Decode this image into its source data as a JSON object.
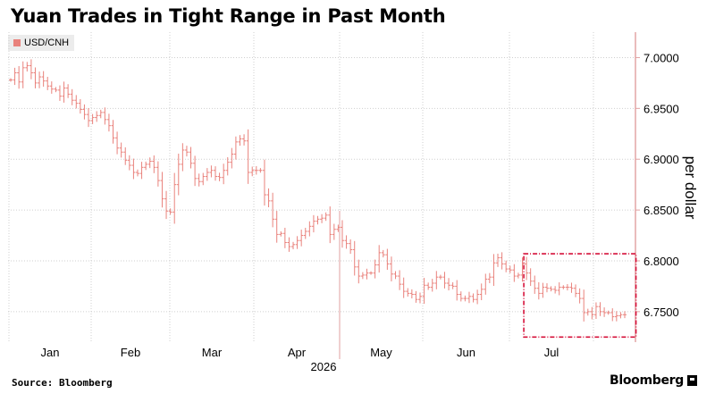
{
  "title": "Yuan Trades in Tight Range in Past Month",
  "source": "Source: Bloomberg",
  "brand": "Bloomberg",
  "brand_icon": "bloomberg-terminal-icon",
  "colors": {
    "series": "#e9827c",
    "highlight_box": "#d6113a",
    "axis": "#e0a0a0",
    "grid": "#cfcfcf"
  },
  "chart_data": {
    "type": "ohlc",
    "title": "Yuan Trades in Tight Range in Past Month",
    "ylabel": "per dollar",
    "year_label": "2026",
    "legend": "USD/CNH",
    "ylim": [
      6.72,
      7.025
    ],
    "yticks": [
      6.75,
      6.8,
      6.85,
      6.9,
      6.95,
      7.0
    ],
    "ytick_labels": [
      "6.7500",
      "6.8000",
      "6.8500",
      "6.9000",
      "6.9500",
      "7.0000"
    ],
    "months": [
      "Jan",
      "Feb",
      "Mar",
      "Apr",
      "May",
      "Jun",
      "Jul"
    ],
    "grid": true,
    "y_axis_position": "right",
    "highlight": {
      "x_start_index": 126,
      "x_end_index": 151,
      "y_range": [
        6.725,
        6.807
      ]
    },
    "series": [
      {
        "name": "USD/CNH",
        "values": [
          6.978,
          6.985,
          6.976,
          6.99,
          6.992,
          6.985,
          6.975,
          6.981,
          6.977,
          6.972,
          6.969,
          6.968,
          6.962,
          6.97,
          6.964,
          6.958,
          6.955,
          6.949,
          6.944,
          6.938,
          6.941,
          6.943,
          6.946,
          6.939,
          6.933,
          6.921,
          6.911,
          6.907,
          6.899,
          6.894,
          6.887,
          6.886,
          6.892,
          6.895,
          6.898,
          6.892,
          6.879,
          6.861,
          6.849,
          6.848,
          6.875,
          6.895,
          6.909,
          6.907,
          6.896,
          6.881,
          6.878,
          6.883,
          6.887,
          6.889,
          6.883,
          6.882,
          6.889,
          6.897,
          6.905,
          6.917,
          6.92,
          6.918,
          6.887,
          6.889,
          6.889,
          6.889,
          6.865,
          6.859,
          6.841,
          6.826,
          6.827,
          6.818,
          6.814,
          6.816,
          6.82,
          6.825,
          6.829,
          6.834,
          6.839,
          6.841,
          6.842,
          6.845,
          6.826,
          6.831,
          6.833,
          6.82,
          6.817,
          6.811,
          6.794,
          6.785,
          6.786,
          6.788,
          6.788,
          6.796,
          6.808,
          6.806,
          6.797,
          6.787,
          6.785,
          6.777,
          6.77,
          6.768,
          6.767,
          6.762,
          6.765,
          6.776,
          6.774,
          6.778,
          6.784,
          6.784,
          6.778,
          6.776,
          6.775,
          6.767,
          6.763,
          6.763,
          6.765,
          6.762,
          6.767,
          6.772,
          6.782,
          6.784,
          6.798,
          6.803,
          6.797,
          6.792,
          6.791,
          6.785,
          6.786,
          6.797,
          6.788,
          6.78,
          6.773,
          6.768,
          6.774,
          6.773,
          6.772,
          6.771,
          6.774,
          6.774,
          6.774,
          6.773,
          6.768,
          6.763,
          6.749,
          6.75,
          6.747,
          6.755,
          6.75,
          6.749,
          6.749,
          6.745,
          6.746,
          6.747,
          6.747
        ]
      }
    ]
  }
}
